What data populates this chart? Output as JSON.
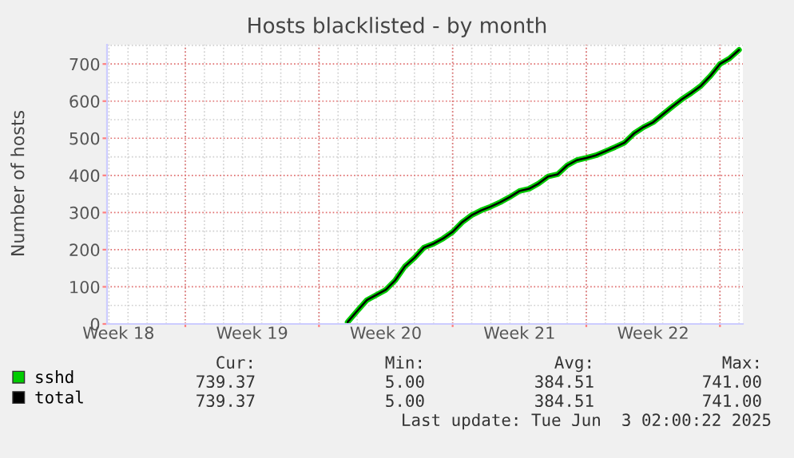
{
  "chart_data": {
    "type": "line",
    "title": "Hosts blacklisted - by month",
    "ylabel": "Number of hosts",
    "categories": [
      null,
      "Week 18",
      null,
      null,
      null,
      null,
      null,
      null,
      null,
      null,
      null,
      null,
      null,
      null,
      null,
      "Week 19",
      null,
      null,
      null,
      null,
      null,
      null,
      null,
      null,
      null,
      null,
      null,
      null,
      null,
      "Week 20",
      null,
      null,
      null,
      null,
      null,
      null,
      null,
      null,
      null,
      null,
      null,
      null,
      null,
      "Week 21",
      null,
      null,
      null,
      null,
      null,
      null,
      null,
      null,
      null,
      null,
      null,
      null,
      null,
      "Week 22",
      null,
      null,
      null,
      null,
      null,
      null,
      null,
      null,
      null
    ],
    "series": [
      {
        "name": "sshd",
        "color": "#00cc00",
        "values": [
          null,
          null,
          null,
          null,
          null,
          null,
          null,
          null,
          null,
          null,
          null,
          null,
          null,
          null,
          null,
          null,
          null,
          null,
          null,
          null,
          null,
          null,
          null,
          null,
          null,
          5,
          35,
          64,
          78,
          92,
          118,
          155,
          178,
          206,
          216,
          230,
          248,
          274,
          293,
          306,
          316,
          328,
          342,
          358,
          364,
          378,
          397,
          403,
          427,
          441,
          447,
          454,
          465,
          476,
          488,
          513,
          530,
          543,
          564,
          585,
          605,
          622,
          641,
          668,
          700,
          715,
          738
        ]
      },
      {
        "name": "total",
        "color": "#000000",
        "values": [
          null,
          null,
          null,
          null,
          null,
          null,
          null,
          null,
          null,
          null,
          null,
          null,
          null,
          null,
          null,
          null,
          null,
          null,
          null,
          null,
          null,
          null,
          null,
          null,
          null,
          5,
          35,
          64,
          78,
          92,
          118,
          155,
          178,
          206,
          216,
          230,
          248,
          274,
          293,
          306,
          316,
          328,
          342,
          358,
          364,
          378,
          397,
          403,
          427,
          441,
          447,
          454,
          465,
          476,
          488,
          513,
          530,
          543,
          564,
          585,
          605,
          622,
          641,
          668,
          700,
          715,
          738
        ]
      }
    ],
    "ylim": [
      0,
      752
    ],
    "yticks": [
      0,
      100,
      200,
      300,
      400,
      500,
      600,
      700
    ],
    "grid": true,
    "legend": "bottom",
    "marker": "none",
    "line_style": "solid",
    "annotations": [
      "Cur:",
      "Min:",
      "Avg:",
      "Max:",
      "739.37",
      "5.00",
      "384.51",
      "741.00",
      "739.37",
      "5.00",
      "384.51",
      "741.00",
      "Last update: Tue Jun  3 02:00:22 2025"
    ]
  }
}
